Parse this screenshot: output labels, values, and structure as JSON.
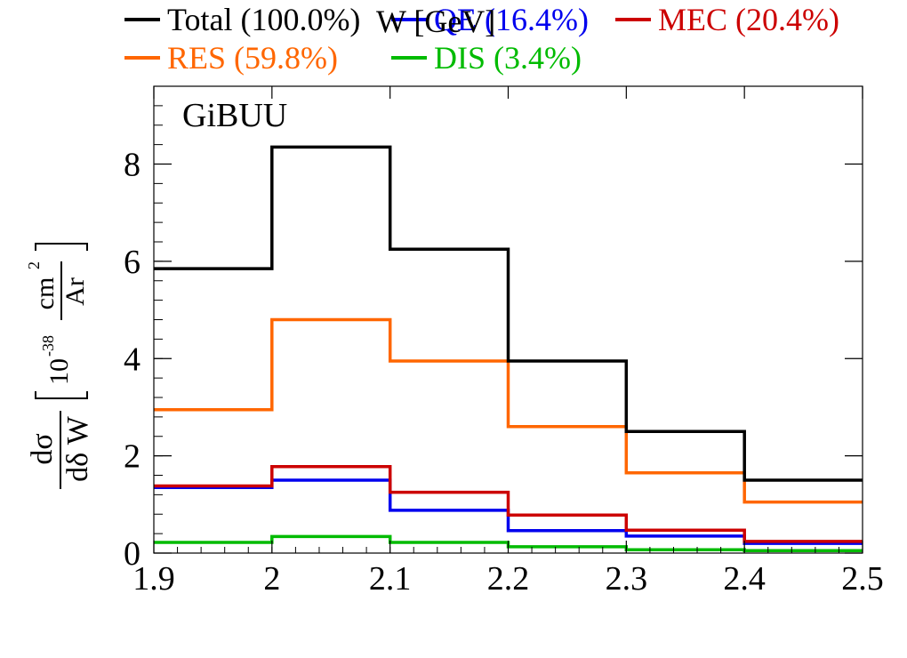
{
  "chart_data": {
    "type": "line",
    "step": true,
    "annotation": "GiBUU",
    "xlabel": "W [GeV]",
    "ylabel": {
      "num": "dσ",
      "den": "dδ W",
      "unit_prefix": "10",
      "unit_exp": "-38",
      "unit_num": "cm",
      "unit_num_exp": "2",
      "unit_den": "Ar"
    },
    "xlim": [
      1.9,
      2.5
    ],
    "ylim": [
      0,
      9.6
    ],
    "xticks": [
      "1.9",
      "2",
      "2.1",
      "2.2",
      "2.3",
      "2.4",
      "2.5"
    ],
    "yticks": [
      "0",
      "2",
      "4",
      "6",
      "8"
    ],
    "bin_edges": [
      1.9,
      2.0,
      2.1,
      2.2,
      2.3,
      2.4,
      2.5
    ],
    "legend_position": "top",
    "series": [
      {
        "name": "Total (100.0%)",
        "color": "#000000",
        "values": [
          5.85,
          8.35,
          6.25,
          3.95,
          2.5,
          1.5
        ]
      },
      {
        "name": "QE (16.4%)",
        "color": "#0000ee",
        "values": [
          1.35,
          1.5,
          0.88,
          0.46,
          0.35,
          0.2
        ]
      },
      {
        "name": "MEC (20.4%)",
        "color": "#cc0000",
        "values": [
          1.38,
          1.78,
          1.25,
          0.78,
          0.47,
          0.24
        ]
      },
      {
        "name": "RES (59.8%)",
        "color": "#ff6600",
        "values": [
          2.95,
          4.8,
          3.95,
          2.6,
          1.65,
          1.05
        ]
      },
      {
        "name": "DIS (3.4%)",
        "color": "#00bb00",
        "values": [
          0.22,
          0.34,
          0.22,
          0.13,
          0.07,
          0.05
        ]
      }
    ]
  }
}
